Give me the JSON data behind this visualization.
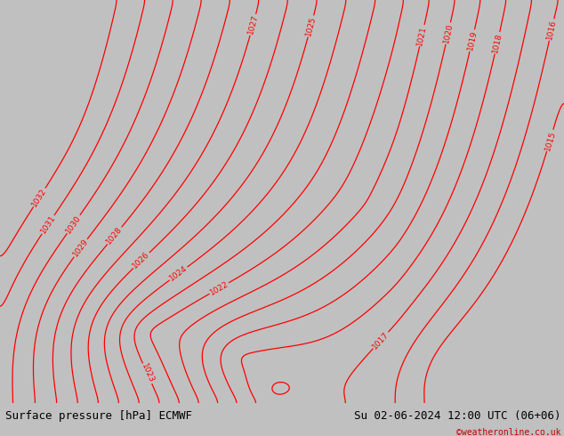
{
  "title_left": "Surface pressure [hPa] ECMWF",
  "title_right": "Su 02-06-2024 12:00 UTC (06+06)",
  "credit": "©weatheronline.co.uk",
  "land_color": "#c8eab4",
  "sea_color": "#d2d2d2",
  "border_color": "#909090",
  "contour_color": "#ff0000",
  "contour_levels": [
    1015,
    1016,
    1017,
    1018,
    1019,
    1020,
    1021,
    1022,
    1023,
    1024,
    1025,
    1026,
    1027,
    1028,
    1029,
    1030,
    1031,
    1032
  ],
  "label_fontsize": 6.5,
  "title_fontsize": 9,
  "paris_lon": 2.35,
  "paris_lat": 48.85,
  "lon_min": -10.5,
  "lon_max": 21.5,
  "lat_min": 41.5,
  "lat_max": 58.5
}
